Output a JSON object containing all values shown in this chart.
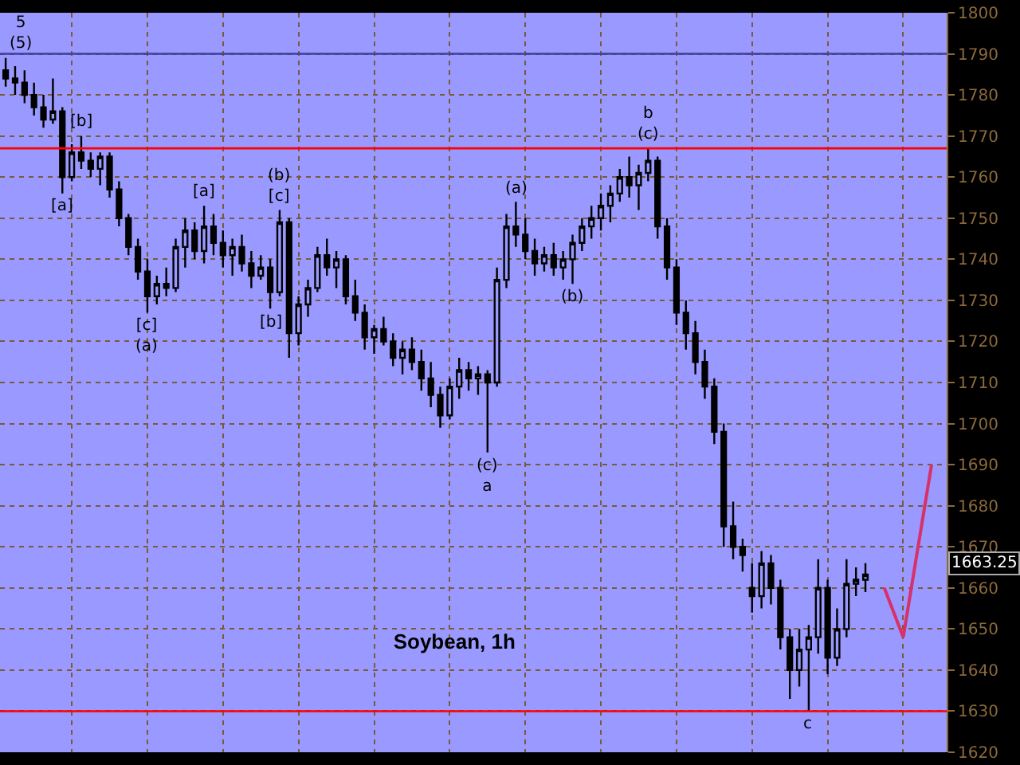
{
  "chart_data": {
    "type": "candlestick",
    "title": "Soybean, 1h",
    "categories": [
      null,
      null,
      null,
      null,
      null,
      null,
      null,
      null,
      null,
      null,
      null,
      null,
      null,
      null,
      null,
      null,
      null,
      null,
      null,
      null,
      null,
      null,
      null,
      null,
      null,
      null,
      null,
      null,
      null,
      null,
      null,
      null,
      null,
      null,
      null,
      null,
      null,
      null,
      null,
      null,
      null,
      null,
      null,
      null,
      null,
      null,
      null,
      null,
      null,
      null,
      null,
      null,
      null,
      null,
      null,
      null,
      null,
      null,
      null,
      null,
      null,
      null,
      null,
      null,
      null,
      null,
      null,
      null,
      null,
      null,
      null,
      null,
      null,
      null,
      null,
      null,
      null,
      null,
      null,
      null,
      null,
      null,
      null,
      null,
      null,
      null,
      null,
      null,
      null,
      null,
      null,
      null,
      null,
      null,
      null,
      null,
      null,
      null,
      null,
      null
    ],
    "ohlc": [
      [
        1786,
        1789,
        1782,
        1784
      ],
      [
        1784,
        1787,
        1780,
        1783
      ],
      [
        1783,
        1786,
        1778,
        1780
      ],
      [
        1780,
        1783,
        1775,
        1777
      ],
      [
        1777,
        1780,
        1772,
        1774
      ],
      [
        1774,
        1784,
        1773,
        1776
      ],
      [
        1776,
        1777,
        1756,
        1760
      ],
      [
        1760,
        1768,
        1759,
        1766
      ],
      [
        1766,
        1770,
        1762,
        1764
      ],
      [
        1764,
        1766,
        1760,
        1762
      ],
      [
        1762,
        1766,
        1758,
        1765
      ],
      [
        1765,
        1766,
        1755,
        1757
      ],
      [
        1757,
        1759,
        1748,
        1750
      ],
      [
        1750,
        1751,
        1741,
        1743
      ],
      [
        1743,
        1745,
        1735,
        1737
      ],
      [
        1737,
        1740,
        1727,
        1731
      ],
      [
        1731,
        1736,
        1729,
        1734
      ],
      [
        1734,
        1738,
        1731,
        1733
      ],
      [
        1733,
        1745,
        1732,
        1743
      ],
      [
        1743,
        1750,
        1738,
        1747
      ],
      [
        1747,
        1749,
        1740,
        1742
      ],
      [
        1742,
        1753,
        1739,
        1748
      ],
      [
        1748,
        1751,
        1741,
        1744
      ],
      [
        1744,
        1747,
        1738,
        1741
      ],
      [
        1741,
        1745,
        1736,
        1743
      ],
      [
        1743,
        1746,
        1737,
        1739
      ],
      [
        1739,
        1742,
        1733,
        1736
      ],
      [
        1736,
        1741,
        1735,
        1738
      ],
      [
        1738,
        1740,
        1728,
        1732
      ],
      [
        1732,
        1752,
        1731,
        1749
      ],
      [
        1749,
        1750,
        1716,
        1722
      ],
      [
        1722,
        1731,
        1719,
        1729
      ],
      [
        1729,
        1735,
        1726,
        1733
      ],
      [
        1733,
        1743,
        1732,
        1741
      ],
      [
        1741,
        1745,
        1736,
        1738
      ],
      [
        1738,
        1742,
        1733,
        1740
      ],
      [
        1740,
        1741,
        1729,
        1731
      ],
      [
        1731,
        1735,
        1725,
        1727
      ],
      [
        1727,
        1729,
        1718,
        1721
      ],
      [
        1721,
        1724,
        1717,
        1723
      ],
      [
        1723,
        1726,
        1719,
        1720
      ],
      [
        1720,
        1722,
        1714,
        1716
      ],
      [
        1716,
        1720,
        1712,
        1718
      ],
      [
        1718,
        1721,
        1713,
        1715
      ],
      [
        1715,
        1718,
        1708,
        1711
      ],
      [
        1711,
        1715,
        1704,
        1707
      ],
      [
        1707,
        1709,
        1699,
        1702
      ],
      [
        1702,
        1711,
        1701,
        1709
      ],
      [
        1709,
        1716,
        1706,
        1713
      ],
      [
        1713,
        1715,
        1708,
        1711
      ],
      [
        1711,
        1714,
        1707,
        1712
      ],
      [
        1712,
        1713,
        1693,
        1710
      ],
      [
        1710,
        1738,
        1709,
        1735
      ],
      [
        1735,
        1751,
        1733,
        1748
      ],
      [
        1748,
        1754,
        1743,
        1746
      ],
      [
        1746,
        1750,
        1740,
        1742
      ],
      [
        1742,
        1745,
        1736,
        1739
      ],
      [
        1739,
        1743,
        1737,
        1741
      ],
      [
        1741,
        1744,
        1736,
        1738
      ],
      [
        1738,
        1742,
        1735,
        1740
      ],
      [
        1740,
        1746,
        1734,
        1744
      ],
      [
        1744,
        1750,
        1742,
        1748
      ],
      [
        1748,
        1753,
        1745,
        1750
      ],
      [
        1750,
        1756,
        1747,
        1753
      ],
      [
        1753,
        1758,
        1749,
        1756
      ],
      [
        1756,
        1762,
        1754,
        1760
      ],
      [
        1760,
        1765,
        1755,
        1758
      ],
      [
        1758,
        1763,
        1752,
        1761
      ],
      [
        1761,
        1767,
        1759,
        1764
      ],
      [
        1764,
        1765,
        1745,
        1748
      ],
      [
        1748,
        1750,
        1735,
        1738
      ],
      [
        1738,
        1740,
        1724,
        1727
      ],
      [
        1727,
        1730,
        1718,
        1722
      ],
      [
        1722,
        1725,
        1712,
        1715
      ],
      [
        1715,
        1718,
        1706,
        1709
      ],
      [
        1709,
        1711,
        1695,
        1698
      ],
      [
        1698,
        1700,
        1670,
        1675
      ],
      [
        1675,
        1681,
        1667,
        1670
      ],
      [
        1670,
        1672,
        1664,
        1668
      ],
      [
        1660,
        1666,
        1654,
        1658
      ],
      [
        1658,
        1669,
        1655,
        1666
      ],
      [
        1666,
        1668,
        1656,
        1660
      ],
      [
        1660,
        1662,
        1645,
        1648
      ],
      [
        1648,
        1650,
        1633,
        1640
      ],
      [
        1640,
        1650,
        1636,
        1645
      ],
      [
        1645,
        1651,
        1630,
        1648
      ],
      [
        1648,
        1667,
        1644,
        1660
      ],
      [
        1660,
        1662,
        1639,
        1643
      ],
      [
        1643,
        1655,
        1641,
        1650
      ],
      [
        1650,
        1667,
        1648,
        1661
      ],
      [
        1661,
        1665,
        1658,
        1662
      ],
      [
        1662,
        1666,
        1659,
        1663.25
      ],
      null,
      null,
      null,
      null,
      null,
      null,
      null,
      null
    ],
    "series": [
      {
        "type": "line",
        "color": "#d8306a",
        "values": [
          null,
          null,
          null,
          null,
          null,
          null,
          null,
          null,
          null,
          null,
          null,
          null,
          null,
          null,
          null,
          null,
          null,
          null,
          null,
          null,
          null,
          null,
          null,
          null,
          null,
          null,
          null,
          null,
          null,
          null,
          null,
          null,
          null,
          null,
          null,
          null,
          null,
          null,
          null,
          null,
          null,
          null,
          null,
          null,
          null,
          null,
          null,
          null,
          null,
          null,
          null,
          null,
          null,
          null,
          null,
          null,
          null,
          null,
          null,
          null,
          null,
          null,
          null,
          null,
          null,
          null,
          null,
          null,
          null,
          null,
          null,
          null,
          null,
          null,
          null,
          null,
          null,
          null,
          null,
          null,
          null,
          null,
          null,
          null,
          null,
          null,
          null,
          null,
          null,
          null,
          null,
          null,
          null,
          1660,
          null,
          1648,
          null,
          null,
          1690,
          null
        ]
      }
    ],
    "ylim": [
      1620,
      1800
    ],
    "yticks": [
      1620,
      1630,
      1640,
      1650,
      1660,
      1670,
      1680,
      1690,
      1700,
      1710,
      1720,
      1730,
      1740,
      1750,
      1760,
      1770,
      1780,
      1790,
      1800
    ],
    "grid": true,
    "tick_labels": "y",
    "ref_lines": [
      {
        "axis": "y",
        "value": 1790,
        "color": "#40409a"
      },
      {
        "axis": "y",
        "value": 1767,
        "color": "#ff0000"
      },
      {
        "axis": "y",
        "value": 1630,
        "color": "#ff0000"
      }
    ],
    "annotations": [
      {
        "text": "5\n(5)",
        "y": 1789
      },
      {
        "text": "[a]",
        "y": 1756
      },
      {
        "text": "[b]",
        "y": 1770
      },
      {
        "text": "[c]\n(a)",
        "y": 1727
      },
      {
        "text": "[a]",
        "y": 1753
      },
      {
        "text": "[b]",
        "y": 1728
      },
      {
        "text": "(b)\n[c]",
        "y": 1752
      },
      {
        "text": "(c)\na",
        "y": 1693
      },
      {
        "text": "(a)",
        "y": 1754
      },
      {
        "text": "(b)",
        "y": 1734
      },
      {
        "text": "b\n(c)",
        "y": 1767
      },
      {
        "text": "c",
        "y": 1630
      },
      "1663.25"
    ]
  }
}
